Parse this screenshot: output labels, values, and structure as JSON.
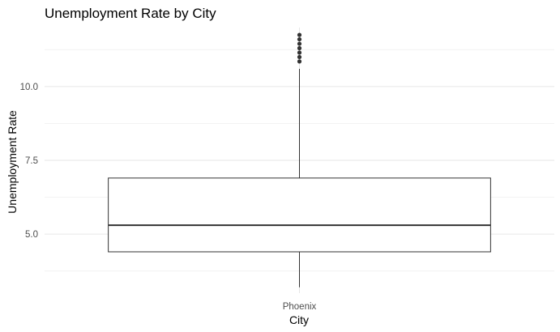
{
  "chart_data": {
    "type": "box",
    "title": "Unemployment Rate by City",
    "xlabel": "City",
    "ylabel": "Unemployment Rate",
    "ylim": [
      3.0,
      12.0
    ],
    "yticks": [
      5.0,
      7.5,
      10.0
    ],
    "ytick_labels": [
      "5.0",
      "7.5",
      "10.0"
    ],
    "categories": [
      "Phoenix"
    ],
    "boxes": [
      {
        "category": "Phoenix",
        "min": 3.2,
        "q1": 4.4,
        "median": 5.3,
        "q3": 6.9,
        "max": 10.6,
        "outliers": [
          10.85,
          11.0,
          11.15,
          11.3,
          11.45,
          11.6,
          11.75
        ]
      }
    ],
    "grid": true,
    "legend": "none"
  }
}
